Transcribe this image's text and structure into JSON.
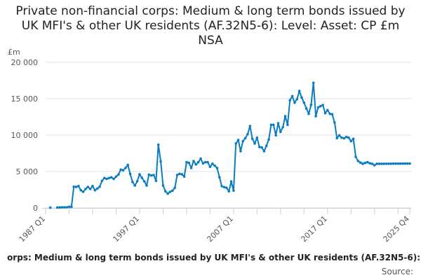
{
  "chart_data": {
    "type": "line",
    "title": "Private non-financial corps: Medium & long term bonds issued by UK MFI's & other UK residents (AF.32N5-6): Level: Asset: CP £m NSA",
    "ylabel": "£m",
    "xlabel": "",
    "ylim": [
      0,
      20000
    ],
    "yticks": [
      0,
      5000,
      10000,
      15000,
      20000
    ],
    "ytick_labels": [
      "0",
      "5 000",
      "10 000",
      "15 000",
      "20 000"
    ],
    "x_start": "1987 Q1",
    "x_end": "2025 Q4",
    "xtick_labels": [
      {
        "label": "1987 Q1",
        "index": 0
      },
      {
        "label": "1997 Q1",
        "index": 40
      },
      {
        "label": "2007 Q1",
        "index": 80
      },
      {
        "label": "2017 Q1",
        "index": 120
      },
      {
        "label": "2025 Q4",
        "index": 155
      }
    ],
    "grid": true,
    "legend_position": "bottom",
    "color": "#0a7dc2",
    "series": [
      {
        "values": [
          null,
          null,
          30,
          null,
          null,
          50,
          50,
          80,
          80,
          80,
          150,
          150,
          2900,
          2880,
          3000,
          2430,
          2210,
          2600,
          2880,
          2600,
          3000,
          2430,
          2650,
          2900,
          3720,
          4100,
          3980,
          4100,
          4200,
          3980,
          4300,
          4580,
          5260,
          5160,
          5480,
          5900,
          4680,
          3560,
          3080,
          3650,
          4620,
          4130,
          3650,
          3080,
          4580,
          4450,
          4520,
          3720,
          8690,
          6380,
          3080,
          2280,
          1960,
          2210,
          2370,
          2760,
          4520,
          4680,
          4620,
          4300,
          6280,
          6180,
          5480,
          6440,
          5960,
          6280,
          6760,
          6120,
          6280,
          6280,
          5640,
          6060,
          5800,
          5480,
          4200,
          2980,
          2850,
          2760,
          2280,
          3620,
          2370,
          8850,
          9330,
          7790,
          9170,
          9580,
          10130,
          11250,
          9490,
          8850,
          9650,
          8370,
          8300,
          7790,
          8530,
          9400,
          11410,
          11410,
          9970,
          11630,
          10450,
          11090,
          12600,
          11410,
          14780,
          15360,
          14450,
          14940,
          16060,
          15160,
          14450,
          13650,
          12920,
          14150,
          17180,
          12600,
          13810,
          13970,
          14130,
          13010,
          13430,
          12920,
          12850,
          11730,
          9580,
          9970,
          9650,
          9550,
          9740,
          9650,
          9170,
          9490,
          7020,
          6440,
          6220,
          6060,
          6180,
          6280,
          6120,
          6060,
          5860,
          6060,
          6060,
          6060,
          6060,
          6070,
          6070,
          6070,
          6080,
          6080,
          6080,
          6080,
          6090,
          6090,
          6090,
          6090
        ]
      }
    ]
  },
  "legend": {
    "text": "orps: Medium & long term bonds issued by UK MFI's & other UK residents (AF.32N5-6):"
  },
  "source": {
    "label": "Source:"
  }
}
